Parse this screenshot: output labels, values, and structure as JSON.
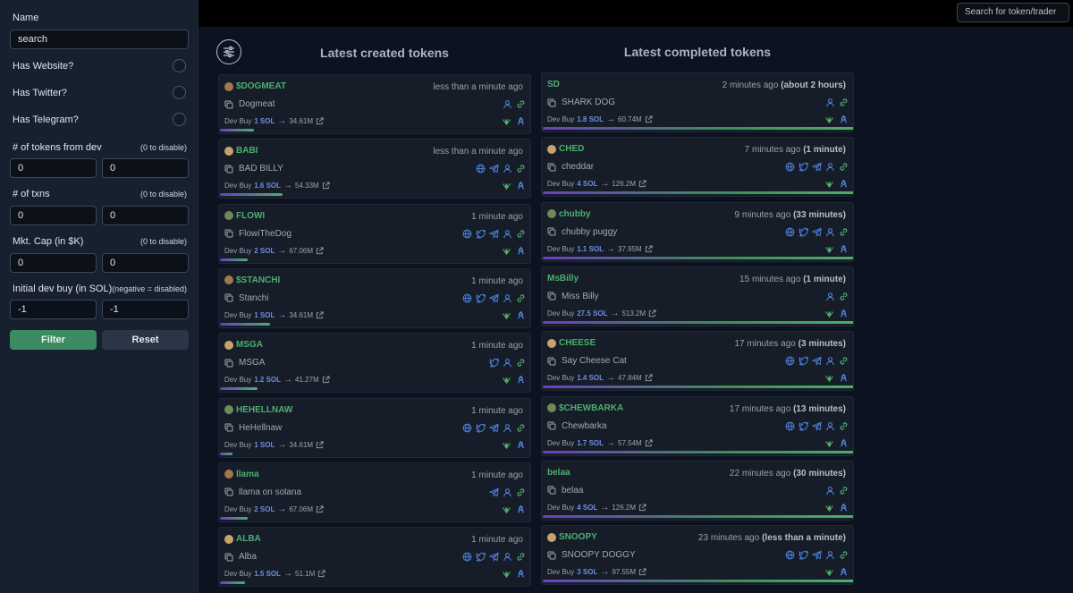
{
  "sidebar": {
    "name_label": "Name",
    "name_input": "search",
    "has_website": "Has Website?",
    "has_twitter": "Has Twitter?",
    "has_telegram": "Has Telegram?",
    "tokens_from_dev": {
      "label": "# of tokens from dev",
      "hint": "(0 to disable)",
      "min": "0",
      "max": "0"
    },
    "txns": {
      "label": "# of txns",
      "hint": "(0 to disable)",
      "min": "0",
      "max": "0"
    },
    "mcap": {
      "label": "Mkt. Cap (in $K)",
      "hint": "(0 to disable)",
      "min": "0",
      "max": "0"
    },
    "dev_buy": {
      "label": "Initial dev buy (in SOL)",
      "hint": "(negative = disabled)",
      "min": "-1",
      "max": "-1"
    },
    "filter_btn": "Filter",
    "reset_btn": "Reset"
  },
  "topbar": {
    "search_placeholder": "Search for token/trader"
  },
  "columns": {
    "created_title": "Latest created tokens",
    "completed_title": "Latest completed tokens"
  },
  "colors": {
    "accent_green": "#4caf6e",
    "sol_blue": "#6d8fe0"
  },
  "created": [
    {
      "symbol": "$DOGMEAT",
      "time": "less than a minute ago",
      "name": "Dogmeat",
      "devbuy_label": "Dev Buy",
      "sol": "1 SOL",
      "mcap": "34.61M",
      "socials": [
        "user-icon",
        "link-icon"
      ],
      "progress": 0.11
    },
    {
      "symbol": "BABI",
      "time": "less than a minute ago",
      "name": "BAD BILLY",
      "devbuy_label": "Dev Buy",
      "sol": "1.6 SOL",
      "mcap": "54.33M",
      "socials": [
        "globe-icon",
        "telegram-icon",
        "user-icon",
        "link-icon"
      ],
      "progress": 0.2
    },
    {
      "symbol": "FLOWI",
      "time": "1 minute ago",
      "name": "FlowiTheDog",
      "devbuy_label": "Dev Buy",
      "sol": "2 SOL",
      "mcap": "67.06M",
      "socials": [
        "globe-icon",
        "twitter-icon",
        "telegram-icon",
        "user-icon",
        "link-icon"
      ],
      "progress": 0.09
    },
    {
      "symbol": "$STANCHI",
      "time": "1 minute ago",
      "name": "Stanchi",
      "devbuy_label": "Dev Buy",
      "sol": "1 SOL",
      "mcap": "34.61M",
      "socials": [
        "globe-icon",
        "twitter-icon",
        "telegram-icon",
        "user-icon",
        "link-icon"
      ],
      "progress": 0.16
    },
    {
      "symbol": "MSGA",
      "time": "1 minute ago",
      "name": "MSGA",
      "devbuy_label": "Dev Buy",
      "sol": "1.2 SOL",
      "mcap": "41.27M",
      "socials": [
        "twitter-icon",
        "user-icon",
        "link-icon"
      ],
      "progress": 0.12
    },
    {
      "symbol": "HEHELLNAW",
      "time": "1 minute ago",
      "name": "HeHellnaw",
      "devbuy_label": "Dev Buy",
      "sol": "1 SOL",
      "mcap": "34.61M",
      "socials": [
        "globe-icon",
        "twitter-icon",
        "telegram-icon",
        "user-icon",
        "link-icon"
      ],
      "progress": 0.04
    },
    {
      "symbol": "llama",
      "time": "1 minute ago",
      "name": "llama on solana",
      "devbuy_label": "Dev Buy",
      "sol": "2 SOL",
      "mcap": "67.06M",
      "socials": [
        "telegram-icon",
        "user-icon",
        "link-icon"
      ],
      "progress": 0.09
    },
    {
      "symbol": "ALBA",
      "time": "1 minute ago",
      "name": "Alba",
      "devbuy_label": "Dev Buy",
      "sol": "1.5 SOL",
      "mcap": "51.1M",
      "socials": [
        "globe-icon",
        "twitter-icon",
        "telegram-icon",
        "user-icon",
        "link-icon"
      ],
      "progress": 0.08
    }
  ],
  "completed": [
    {
      "symbol": "SD",
      "time": "2 minutes ago",
      "duration": "(about 2 hours)",
      "name": "SHARK DOG",
      "devbuy_label": "Dev Buy",
      "sol": "1.8 SOL",
      "mcap": "60.74M",
      "socials": [
        "user-icon",
        "link-icon"
      ]
    },
    {
      "symbol": "CHED",
      "time": "7 minutes ago",
      "duration": "(1 minute)",
      "name": "cheddar",
      "devbuy_label": "Dev Buy",
      "sol": "4 SOL",
      "mcap": "126.2M",
      "socials": [
        "globe-icon",
        "twitter-icon",
        "telegram-icon",
        "user-icon",
        "link-icon"
      ]
    },
    {
      "symbol": "chubby",
      "time": "9 minutes ago",
      "duration": "(33 minutes)",
      "name": "chubby puggy",
      "devbuy_label": "Dev Buy",
      "sol": "1.1 SOL",
      "mcap": "37.95M",
      "socials": [
        "globe-icon",
        "twitter-icon",
        "telegram-icon",
        "user-icon",
        "link-icon"
      ]
    },
    {
      "symbol": "MsBilly",
      "time": "15 minutes ago",
      "duration": "(1 minute)",
      "name": "Miss Billy",
      "devbuy_label": "Dev Buy",
      "sol": "27.5 SOL",
      "mcap": "513.2M",
      "socials": [
        "user-icon",
        "link-icon"
      ]
    },
    {
      "symbol": "CHEESE",
      "time": "17 minutes ago",
      "duration": "(3 minutes)",
      "name": "Say Cheese Cat",
      "devbuy_label": "Dev Buy",
      "sol": "1.4 SOL",
      "mcap": "47.84M",
      "socials": [
        "globe-icon",
        "twitter-icon",
        "telegram-icon",
        "user-icon",
        "link-icon"
      ]
    },
    {
      "symbol": "$CHEWBARKA",
      "time": "17 minutes ago",
      "duration": "(13 minutes)",
      "name": "Chewbarka",
      "devbuy_label": "Dev Buy",
      "sol": "1.7 SOL",
      "mcap": "57.54M",
      "socials": [
        "globe-icon",
        "twitter-icon",
        "telegram-icon",
        "user-icon",
        "link-icon"
      ]
    },
    {
      "symbol": "belaa",
      "time": "22 minutes ago",
      "duration": "(30 minutes)",
      "name": "belaa",
      "devbuy_label": "Dev Buy",
      "sol": "4 SOL",
      "mcap": "126.2M",
      "socials": [
        "user-icon",
        "link-icon"
      ]
    },
    {
      "symbol": "SNOOPY",
      "time": "23 minutes ago",
      "duration": "(less than a minute)",
      "name": "SNOOPY DOGGY",
      "devbuy_label": "Dev Buy",
      "sol": "3 SOL",
      "mcap": "97.55M",
      "socials": [
        "globe-icon",
        "twitter-icon",
        "telegram-icon",
        "user-icon",
        "link-icon"
      ]
    }
  ]
}
